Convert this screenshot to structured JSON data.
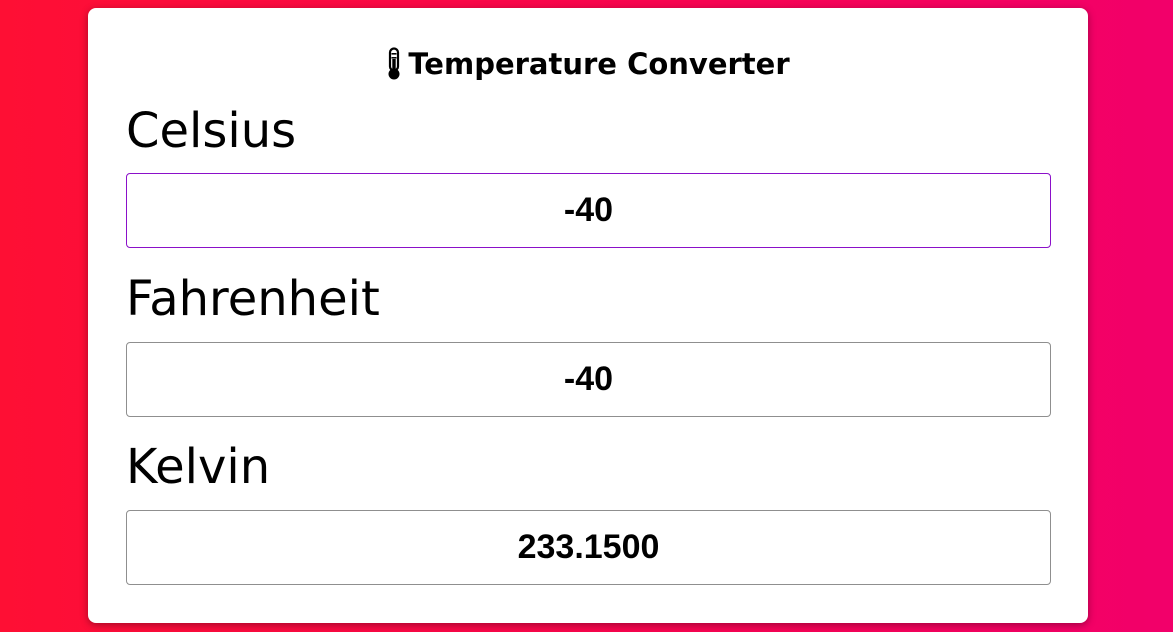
{
  "app": {
    "title": "Temperature Converter",
    "title_icon": "thermometer-icon",
    "colors": {
      "background_start": "#fe0f34",
      "background_end": "#f2006a",
      "card": "#ffffff",
      "focus_border": "#8b10c9",
      "input_border": "#8f8f8f"
    }
  },
  "fields": {
    "celsius": {
      "label": "Celsius",
      "value": "-40"
    },
    "fahrenheit": {
      "label": "Fahrenheit",
      "value": "-40"
    },
    "kelvin": {
      "label": "Kelvin",
      "value": "233.1500"
    }
  }
}
